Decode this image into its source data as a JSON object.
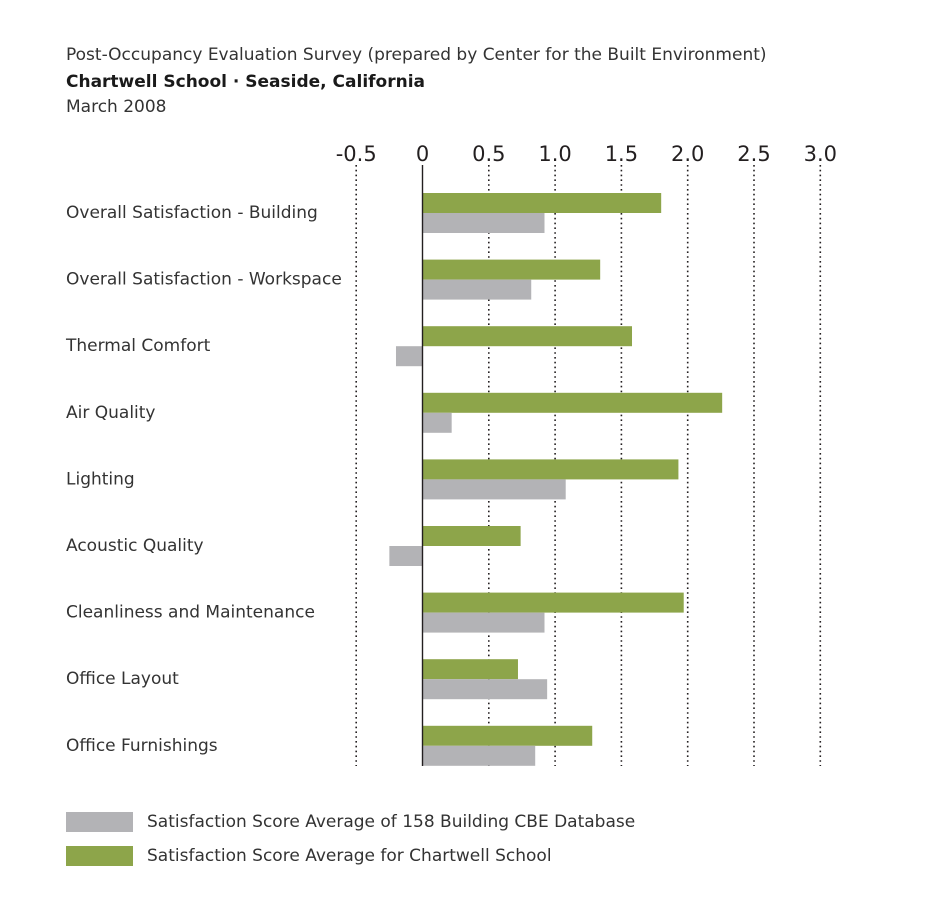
{
  "header": {
    "survey": "Post-Occupancy Evaluation Survey (prepared by Center for the Built Environment)",
    "school": "Chartwell School · Seaside, California",
    "date": "March 2008"
  },
  "chart_data": {
    "type": "bar",
    "orientation": "horizontal",
    "categories": [
      "Overall Satisfaction - Building",
      "Overall Satisfaction - Workspace",
      "Thermal Comfort",
      "Air Quality",
      "Lighting",
      "Acoustic Quality",
      "Cleanliness and Maintenance",
      "Office Layout",
      "Office Furnishings"
    ],
    "series": [
      {
        "name": "Satisfaction Score Average for Chartwell School",
        "color": "#8da54a",
        "values": [
          1.8,
          1.34,
          1.58,
          2.26,
          1.93,
          0.74,
          1.97,
          0.72,
          1.28
        ]
      },
      {
        "name": "Satisfaction Score Average of 158 Building CBE Database",
        "color": "#b3b3b6",
        "values": [
          0.92,
          0.82,
          -0.2,
          0.22,
          1.08,
          -0.25,
          0.92,
          0.94,
          0.85
        ]
      }
    ],
    "xlim": [
      -0.5,
      3.0
    ],
    "ticks": [
      -0.5,
      0,
      0.5,
      1.0,
      1.5,
      2.0,
      2.5,
      3.0
    ],
    "tick_labels": [
      "-0.5",
      "0",
      "0.5",
      "1.0",
      "1.5",
      "2.0",
      "2.5",
      "3.0"
    ],
    "grid": "vertical dotted",
    "legend": "bottom",
    "legend_order": [
      1,
      0
    ]
  }
}
